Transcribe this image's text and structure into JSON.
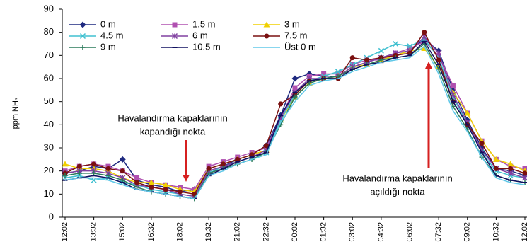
{
  "chart_data": {
    "type": "line",
    "y_label": "ppm NH₃",
    "categories": [
      "12:02",
      null,
      "13:32",
      null,
      "15:02",
      null,
      "16:32",
      null,
      "18:02",
      null,
      "19:32",
      null,
      "21:02",
      null,
      "22:32",
      null,
      "00:02",
      null,
      "01:32",
      null,
      "03:02",
      null,
      "04:32",
      null,
      "06:02",
      null,
      "07:32",
      null,
      "09:02",
      null,
      "10:32",
      null,
      "12:02"
    ],
    "ylim": [
      0,
      90
    ],
    "yticks": [
      0,
      10,
      20,
      30,
      40,
      50,
      60,
      70,
      80,
      90
    ],
    "series": [
      {
        "name": "0 m",
        "color": "#1f2a80",
        "marker": "diamond",
        "values": [
          19,
          20,
          22,
          21,
          25,
          16,
          14,
          13,
          11,
          12,
          19,
          22,
          25,
          27,
          31,
          44,
          60,
          62,
          61,
          61,
          65,
          67,
          69,
          70,
          72,
          77,
          72,
          55,
          42,
          30,
          21,
          20,
          18
        ]
      },
      {
        "name": "1.5 m",
        "color": "#b050b0",
        "marker": "square",
        "values": [
          20,
          22,
          23,
          22,
          20,
          17,
          15,
          14,
          13,
          12,
          22,
          24,
          26,
          28,
          30,
          43,
          56,
          61,
          62,
          62,
          66,
          68,
          68,
          71,
          73,
          76,
          70,
          57,
          45,
          33,
          25,
          22,
          21
        ]
      },
      {
        "name": "3 m",
        "color": "#f0d000",
        "marker": "triangle",
        "values": [
          23,
          21,
          21,
          20,
          17,
          15,
          15,
          14,
          12,
          11,
          21,
          23,
          25,
          27,
          29,
          42,
          52,
          58,
          60,
          61,
          65,
          66,
          68,
          70,
          72,
          73,
          65,
          54,
          45,
          33,
          25,
          23,
          20
        ]
      },
      {
        "name": "4.5 m",
        "color": "#40c0d0",
        "marker": "x",
        "values": [
          17,
          18,
          16,
          17,
          15,
          14,
          12,
          11,
          10,
          9,
          19,
          22,
          24,
          26,
          28,
          42,
          53,
          59,
          61,
          63,
          66,
          69,
          72,
          75,
          74,
          77,
          69,
          52,
          40,
          28,
          20,
          18,
          17
        ]
      },
      {
        "name": "6 m",
        "color": "#8040a0",
        "marker": "star",
        "values": [
          19,
          20,
          20,
          19,
          17,
          14,
          13,
          12,
          10,
          9,
          20,
          22,
          24,
          26,
          29,
          43,
          54,
          60,
          60,
          61,
          65,
          67,
          69,
          71,
          72,
          78,
          71,
          53,
          41,
          29,
          21,
          19,
          17
        ]
      },
      {
        "name": "7.5 m",
        "color": "#7a1010",
        "marker": "circle",
        "values": [
          19,
          22,
          23,
          21,
          20,
          15,
          13,
          12,
          11,
          10,
          21,
          23,
          25,
          27,
          31,
          49,
          53,
          59,
          60,
          60,
          69,
          68,
          69,
          70,
          71,
          80,
          68,
          50,
          40,
          32,
          21,
          21,
          19
        ]
      },
      {
        "name": "9 m",
        "color": "#2a7a5a",
        "marker": "plus",
        "values": [
          18,
          19,
          19,
          18,
          16,
          13,
          11,
          10,
          9,
          8,
          19,
          21,
          23,
          25,
          28,
          40,
          52,
          58,
          60,
          61,
          64,
          66,
          68,
          69,
          70,
          75,
          64,
          48,
          38,
          26,
          18,
          16,
          15
        ]
      },
      {
        "name": "10.5 m",
        "color": "#101060",
        "marker": "dash",
        "values": [
          16,
          17,
          18,
          17,
          15,
          12,
          11,
          10,
          9,
          8,
          18,
          21,
          24,
          26,
          28,
          44,
          54,
          59,
          60,
          60,
          64,
          66,
          67,
          69,
          70,
          76,
          66,
          50,
          40,
          28,
          18,
          16,
          15
        ]
      },
      {
        "name": "Üst 0 m",
        "color": "#60c8e8",
        "marker": "none",
        "values": [
          16,
          17,
          17,
          16,
          14,
          12,
          11,
          10,
          9,
          8,
          18,
          20,
          23,
          25,
          27,
          41,
          50,
          57,
          59,
          60,
          63,
          65,
          67,
          68,
          69,
          74,
          62,
          46,
          37,
          26,
          17,
          15,
          14
        ]
      }
    ],
    "annotations": [
      {
        "lines": [
          "Havalandırma kapaklarının",
          "kapandığı nokta"
        ]
      },
      {
        "lines": [
          "Havalandırma kapaklarının",
          "açıldığı nokta"
        ]
      }
    ]
  }
}
